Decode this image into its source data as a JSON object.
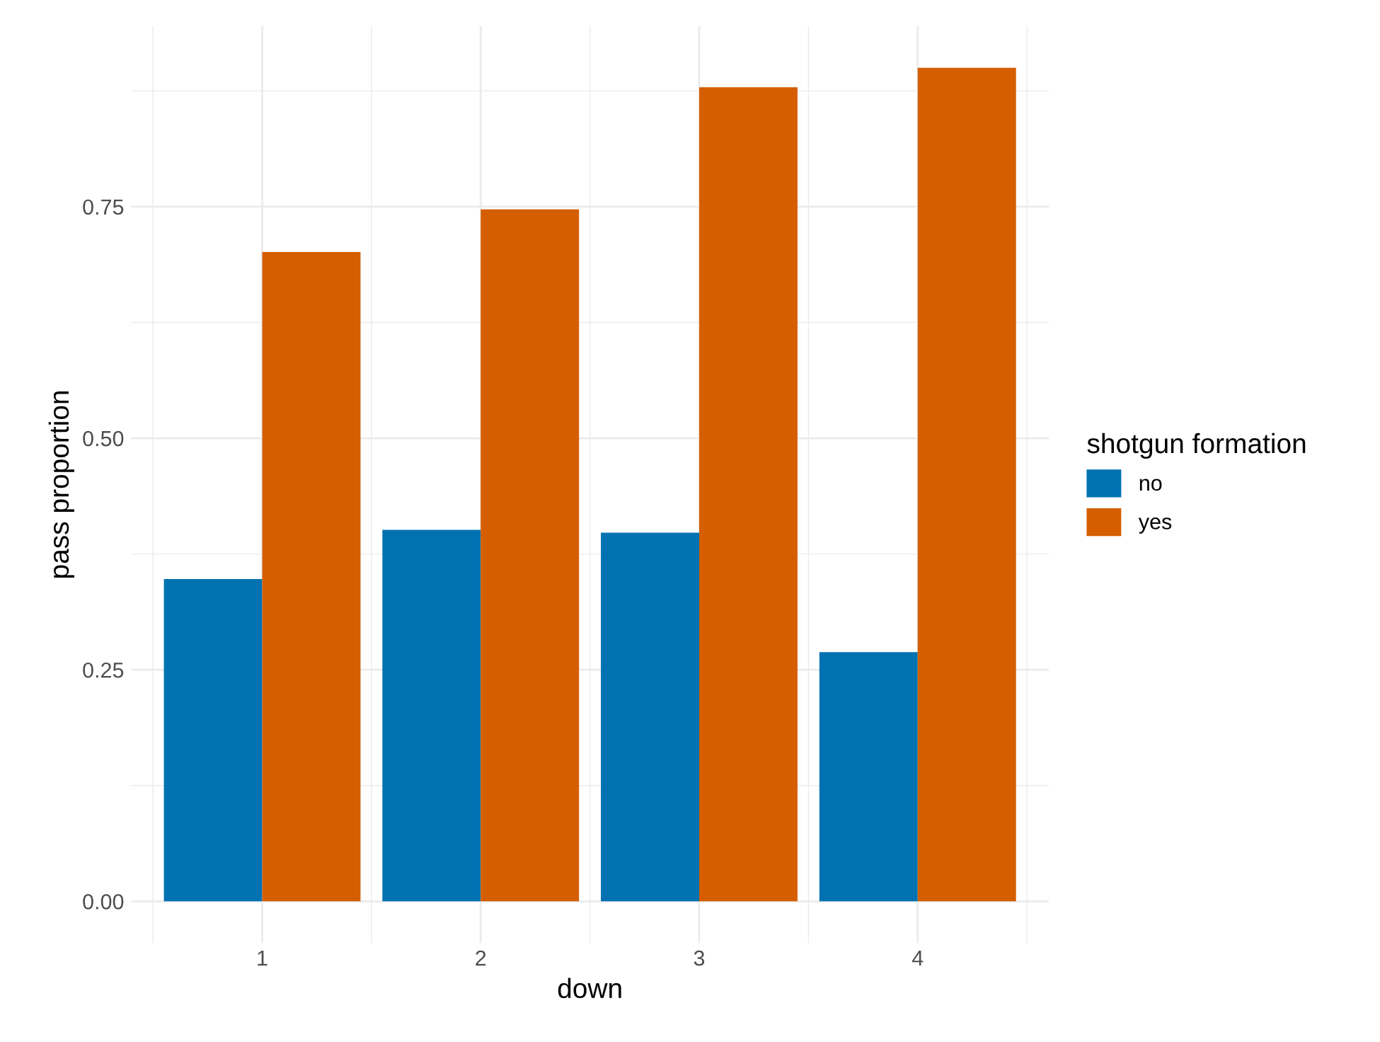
{
  "chart_data": {
    "type": "bar",
    "xlabel": "down",
    "ylabel": "pass proportion",
    "legend_title": "shotgun formation",
    "categories": [
      "1",
      "2",
      "3",
      "4"
    ],
    "series": [
      {
        "name": "no",
        "color": "#0072b2",
        "values": [
          0.348,
          0.401,
          0.398,
          0.269
        ]
      },
      {
        "name": "yes",
        "color": "#d55e00",
        "values": [
          0.701,
          0.747,
          0.879,
          0.9
        ]
      }
    ],
    "ylim": [
      -0.045,
      0.945
    ],
    "yticks": [
      "0.00",
      {
        "value": 0.125,
        "label": null
      },
      {
        "value": 0.25,
        "label": "0.25"
      },
      {
        "value": 0.375,
        "label": null
      },
      {
        "value": 0.5,
        "label": "0.50"
      },
      {
        "value": 0.625,
        "label": null
      },
      {
        "value": 0.75,
        "label": "0.75"
      },
      {
        "value": 0.875,
        "label": null
      }
    ],
    "grid": true,
    "legend": "right"
  }
}
